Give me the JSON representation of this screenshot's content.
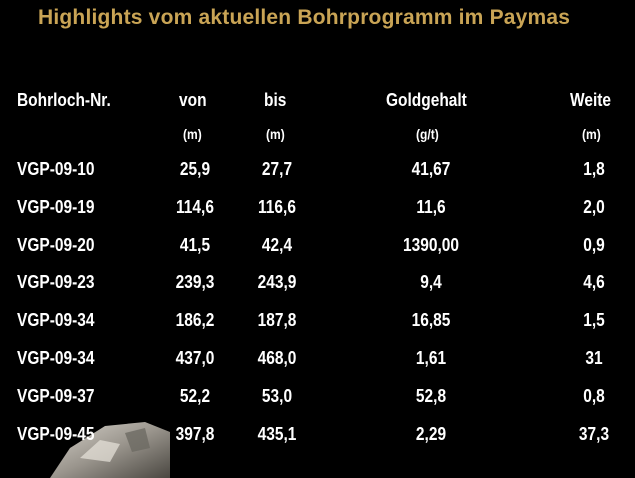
{
  "title": "Highlights vom aktuellen Bohrprogramm im Paymas",
  "colors": {
    "background": "#000000",
    "title": "#c9a455",
    "text": "#ffffff"
  },
  "table": {
    "headers": {
      "hole": "Bohrloch-Nr.",
      "from": "von",
      "to": "bis",
      "gold": "Goldgehalt",
      "width": "Weite"
    },
    "units": {
      "from": "(m)",
      "to": "(m)",
      "gold": "(g/t)",
      "width": "(m)"
    },
    "rows": [
      {
        "hole": "VGP-09-10",
        "from": "25,9",
        "to": "27,7",
        "gold": "41,67",
        "width": "1,8"
      },
      {
        "hole": "VGP-09-19",
        "from": "114,6",
        "to": "116,6",
        "gold": "11,6",
        "width": "2,0"
      },
      {
        "hole": "VGP-09-20",
        "from": "41,5",
        "to": "42,4",
        "gold": "1390,00",
        "width": "0,9"
      },
      {
        "hole": "VGP-09-23",
        "from": "239,3",
        "to": "243,9",
        "gold": "9,4",
        "width": "4,6"
      },
      {
        "hole": "VGP-09-34",
        "from": "186,2",
        "to": "187,8",
        "gold": "16,85",
        "width": "1,5"
      },
      {
        "hole": "VGP-09-34",
        "from": "437,0",
        "to": "468,0",
        "gold": "1,61",
        "width": "31"
      },
      {
        "hole": "VGP-09-37",
        "from": "52,2",
        "to": "53,0",
        "gold": "52,8",
        "width": "0,8"
      },
      {
        "hole": "VGP-09-45",
        "from": "397,8",
        "to": "435,1",
        "gold": "2,29",
        "width": "37,3"
      }
    ]
  }
}
